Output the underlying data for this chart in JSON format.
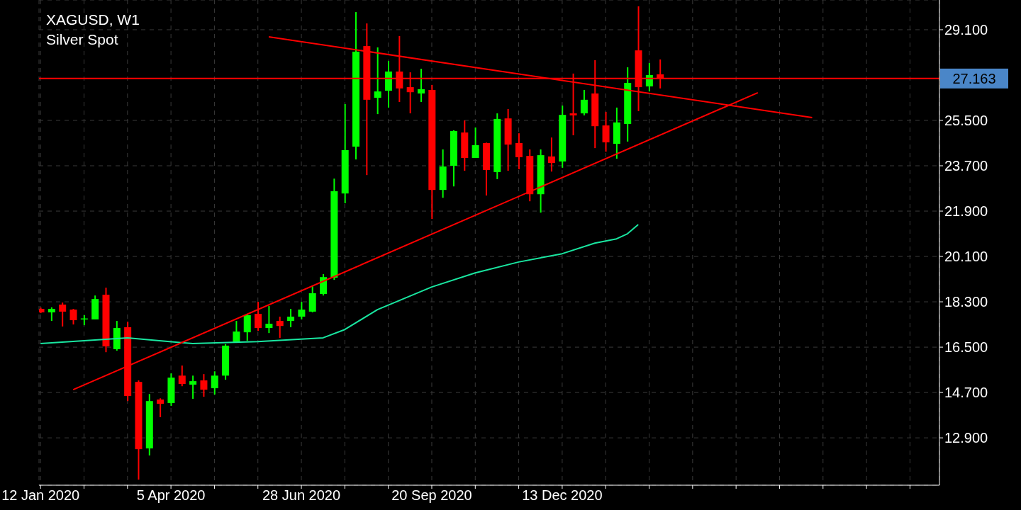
{
  "chart_data": {
    "type": "candlestick",
    "title": "XAGUSD, W1",
    "subtitle": "Silver Spot",
    "x": [
      "2020-01-12",
      "2020-01-19",
      "2020-01-26",
      "2020-02-02",
      "2020-02-09",
      "2020-02-16",
      "2020-02-23",
      "2020-03-01",
      "2020-03-08",
      "2020-03-15",
      "2020-03-22",
      "2020-03-29",
      "2020-04-05",
      "2020-04-12",
      "2020-04-19",
      "2020-04-26",
      "2020-05-03",
      "2020-05-10",
      "2020-05-17",
      "2020-05-24",
      "2020-05-31",
      "2020-06-07",
      "2020-06-14",
      "2020-06-21",
      "2020-06-28",
      "2020-07-05",
      "2020-07-12",
      "2020-07-19",
      "2020-07-26",
      "2020-08-02",
      "2020-08-09",
      "2020-08-16",
      "2020-08-23",
      "2020-08-30",
      "2020-09-06",
      "2020-09-13",
      "2020-09-20",
      "2020-09-27",
      "2020-10-04",
      "2020-10-11",
      "2020-10-18",
      "2020-10-25",
      "2020-11-01",
      "2020-11-08",
      "2020-11-15",
      "2020-11-22",
      "2020-11-29",
      "2020-12-06",
      "2020-12-13",
      "2020-12-20",
      "2020-12-27",
      "2021-01-03",
      "2021-01-10",
      "2021-01-17",
      "2021-01-24",
      "2021-01-31",
      "2021-02-07",
      "2021-02-14"
    ],
    "ohlc": [
      [
        18.02,
        18.07,
        17.85,
        17.88
      ],
      [
        17.88,
        18.08,
        17.54,
        18.02
      ],
      [
        18.19,
        18.27,
        17.32,
        17.91
      ],
      [
        17.99,
        18.02,
        17.4,
        17.57
      ],
      [
        17.6,
        17.77,
        17.37,
        17.64
      ],
      [
        17.6,
        18.55,
        17.6,
        18.41
      ],
      [
        18.58,
        18.86,
        16.3,
        16.53
      ],
      [
        16.42,
        17.54,
        16.36,
        17.26
      ],
      [
        17.29,
        17.51,
        14.36,
        14.56
      ],
      [
        15.12,
        15.18,
        11.24,
        12.45
      ],
      [
        12.48,
        14.64,
        12.2,
        14.36
      ],
      [
        14.42,
        14.47,
        13.72,
        14.25
      ],
      [
        14.28,
        15.46,
        14.17,
        15.29
      ],
      [
        15.37,
        15.77,
        14.95,
        15.04
      ],
      [
        15.01,
        15.37,
        14.45,
        15.15
      ],
      [
        15.18,
        15.43,
        14.53,
        14.81
      ],
      [
        14.87,
        15.54,
        14.62,
        15.37
      ],
      [
        15.37,
        16.62,
        15.21,
        16.56
      ],
      [
        16.67,
        17.54,
        16.67,
        17.12
      ],
      [
        17.09,
        17.8,
        16.75,
        17.77
      ],
      [
        17.82,
        18.3,
        17.15,
        17.26
      ],
      [
        17.26,
        18.13,
        17.06,
        17.43
      ],
      [
        17.54,
        17.71,
        16.87,
        17.34
      ],
      [
        17.54,
        18.02,
        17.29,
        17.71
      ],
      [
        17.71,
        18.3,
        17.6,
        17.99
      ],
      [
        17.91,
        18.95,
        17.88,
        18.64
      ],
      [
        18.61,
        19.4,
        18.55,
        19.28
      ],
      [
        19.26,
        23.19,
        19.17,
        22.69
      ],
      [
        22.6,
        26.15,
        22.21,
        24.32
      ],
      [
        24.46,
        29.8,
        23.95,
        28.23
      ],
      [
        28.45,
        29.35,
        23.33,
        26.32
      ],
      [
        26.4,
        28.4,
        25.75,
        26.65
      ],
      [
        26.68,
        27.86,
        26.01,
        27.44
      ],
      [
        27.44,
        28.85,
        26.23,
        26.77
      ],
      [
        26.82,
        27.41,
        25.78,
        26.62
      ],
      [
        26.57,
        27.55,
        26.23,
        26.74
      ],
      [
        26.71,
        26.91,
        21.59,
        22.74
      ],
      [
        22.74,
        24.35,
        22.43,
        23.67
      ],
      [
        23.7,
        25.11,
        22.88,
        25.08
      ],
      [
        25.02,
        25.5,
        23.5,
        24.01
      ],
      [
        24.01,
        25.22,
        24.01,
        24.52
      ],
      [
        24.6,
        24.62,
        22.52,
        23.53
      ],
      [
        23.45,
        25.78,
        23.17,
        25.56
      ],
      [
        25.58,
        25.95,
        23.5,
        24.54
      ],
      [
        24.6,
        24.99,
        23.56,
        24.04
      ],
      [
        24.09,
        24.35,
        22.29,
        22.57
      ],
      [
        22.57,
        24.35,
        21.84,
        24.12
      ],
      [
        24.07,
        24.82,
        23.47,
        23.81
      ],
      [
        23.87,
        26.09,
        23.62,
        25.72
      ],
      [
        25.78,
        27.36,
        24.91,
        25.7
      ],
      [
        25.78,
        26.71,
        25.7,
        26.32
      ],
      [
        26.57,
        27.89,
        24.4,
        25.27
      ],
      [
        25.3,
        25.84,
        24.26,
        24.63
      ],
      [
        24.57,
        26.01,
        23.98,
        25.42
      ],
      [
        25.36,
        27.61,
        24.66,
        26.99
      ],
      [
        28.28,
        30.03,
        25.87,
        26.82
      ],
      [
        26.85,
        27.78,
        26.65,
        27.3
      ],
      [
        27.33,
        27.92,
        26.77,
        27.16
      ]
    ],
    "colors": [
      "#ff0000",
      "#00ff00",
      "#ff0000",
      "#ff0000",
      "#00ff00",
      "#00ff00",
      "#ff0000",
      "#00ff00",
      "#ff0000",
      "#ff0000",
      "#00ff00",
      "#ff0000",
      "#00ff00",
      "#ff0000",
      "#00ff00",
      "#ff0000",
      "#00ff00",
      "#00ff00",
      "#00ff00",
      "#00ff00",
      "#ff0000",
      "#00ff00",
      "#ff0000",
      "#00ff00",
      "#00ff00",
      "#00ff00",
      "#00ff00",
      "#00ff00",
      "#00ff00",
      "#00ff00",
      "#ff0000",
      "#00ff00",
      "#00ff00",
      "#ff0000",
      "#ff0000",
      "#00ff00",
      "#ff0000",
      "#00ff00",
      "#00ff00",
      "#ff0000",
      "#00ff00",
      "#ff0000",
      "#00ff00",
      "#ff0000",
      "#ff0000",
      "#ff0000",
      "#00ff00",
      "#ff0000",
      "#00ff00",
      "#ff0000",
      "#00ff00",
      "#ff0000",
      "#ff0000",
      "#00ff00",
      "#00ff00",
      "#ff0000",
      "#00ff00",
      "#ff0000"
    ],
    "series": [
      {
        "type": "line",
        "color": "#19e6a0",
        "x": [
          "2020-01-12",
          "2020-02-23",
          "2020-03-08",
          "2020-04-19",
          "2020-05-31",
          "2020-07-12",
          "2020-07-26",
          "2020-08-16",
          "2020-09-20",
          "2020-10-18",
          "2020-11-15",
          "2020-12-13",
          "2021-01-03",
          "2021-01-17",
          "2021-01-24",
          "2021-01-31"
        ],
        "values": [
          16.64,
          16.81,
          16.87,
          16.64,
          16.72,
          16.87,
          17.2,
          17.99,
          18.89,
          19.45,
          19.88,
          20.21,
          20.63,
          20.8,
          21.0,
          21.37
        ]
      },
      {
        "type": "line",
        "color": "#ff0000",
        "x": [
          "2020-06-07",
          "2021-05-23"
        ],
        "values": [
          28.82,
          25.61
        ]
      },
      {
        "type": "line",
        "color": "#ff0000",
        "x": [
          "2020-02-02",
          "2021-04-18"
        ],
        "values": [
          14.81,
          26.6
        ]
      }
    ],
    "ref_lines": [
      {
        "axis": "y",
        "value": 27.163,
        "label": "27.163",
        "color": "#ff0000"
      }
    ],
    "xlim": [
      "2020-01-11",
      "2021-08-13"
    ],
    "xticks": [
      {
        "value": "2020-01-12",
        "label": "12 Jan 2020"
      },
      {
        "value": "2020-02-09",
        "label": null
      },
      {
        "value": "2020-03-08",
        "label": null
      },
      {
        "value": "2020-04-05",
        "label": "5 Apr 2020"
      },
      {
        "value": "2020-05-03",
        "label": null
      },
      {
        "value": "2020-05-31",
        "label": null
      },
      {
        "value": "2020-06-28",
        "label": "28 Jun 2020"
      },
      {
        "value": "2020-07-26",
        "label": null
      },
      {
        "value": "2020-08-23",
        "label": null
      },
      {
        "value": "2020-09-20",
        "label": "20 Sep 2020"
      },
      {
        "value": "2020-10-18",
        "label": null
      },
      {
        "value": "2020-11-15",
        "label": null
      },
      {
        "value": "2020-12-13",
        "label": "13 Dec 2020"
      },
      {
        "value": "2021-01-10",
        "label": null
      },
      {
        "value": "2021-02-07",
        "label": null
      },
      {
        "value": "2021-03-07",
        "label": null
      },
      {
        "value": "2021-04-04",
        "label": null
      },
      {
        "value": "2021-05-02",
        "label": null
      },
      {
        "value": "2021-05-30",
        "label": null
      },
      {
        "value": "2021-06-27",
        "label": null
      },
      {
        "value": "2021-07-25",
        "label": null
      }
    ],
    "ylim": [
      11.02,
      30.28
    ],
    "yticks": [
      {
        "value": 12.9,
        "label": "12.900"
      },
      {
        "value": 14.7,
        "label": "14.700"
      },
      {
        "value": 16.5,
        "label": "16.500"
      },
      {
        "value": 18.3,
        "label": "18.300"
      },
      {
        "value": 20.1,
        "label": "20.100"
      },
      {
        "value": 21.9,
        "label": "21.900"
      },
      {
        "value": 23.7,
        "label": "23.700"
      },
      {
        "value": 25.5,
        "label": "25.500"
      },
      {
        "value": 29.1,
        "label": "29.100"
      }
    ],
    "grid": true
  }
}
